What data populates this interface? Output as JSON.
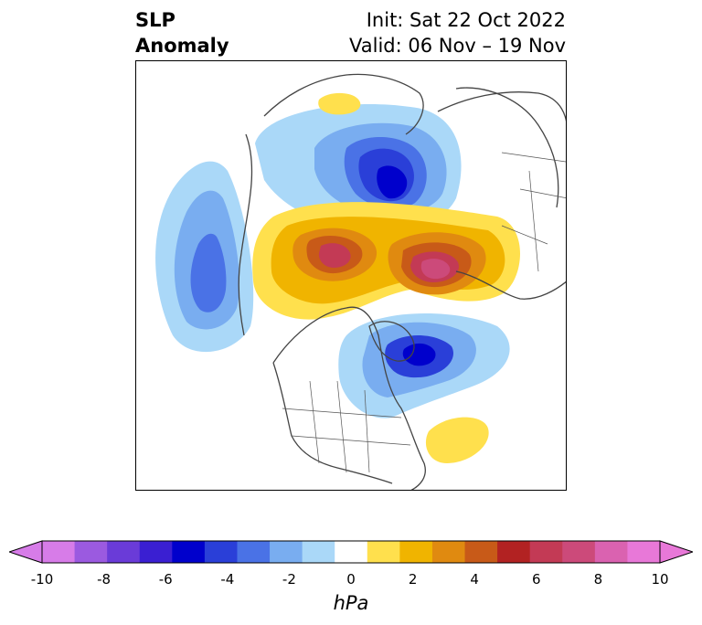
{
  "header": {
    "title_line1": "SLP",
    "title_line2": "Anomaly",
    "init_text": "Init: Sat 22 Oct 2022",
    "valid_text": "Valid: 06 Nov – 19 Nov"
  },
  "colorbar": {
    "unit": "hPa",
    "ticks": [
      "-10",
      "-8",
      "-6",
      "-4",
      "-2",
      "0",
      "2",
      "4",
      "6",
      "8",
      "10"
    ],
    "colors": [
      "#d77ce8",
      "#9b5ae0",
      "#6a3bd8",
      "#3a1fd2",
      "#0000cc",
      "#2a3fd8",
      "#4a72e6",
      "#79adf0",
      "#aad8f8",
      "#ffffff",
      "#ffe04d",
      "#f0b400",
      "#e08a10",
      "#c85a18",
      "#b22222",
      "#c33a55",
      "#cc4a7a",
      "#da62b0",
      "#e878d8"
    ],
    "extend_low_color": "#d77ce8",
    "extend_high_color": "#e878d8"
  },
  "map": {
    "anomalies": [
      {
        "name": "arctic-low",
        "value": -7
      },
      {
        "name": "hudson-bay-low",
        "value": -6
      },
      {
        "name": "north-pacific-low",
        "value": -4
      },
      {
        "name": "siberia-high",
        "value": 6
      },
      {
        "name": "europe-high",
        "value": 7
      },
      {
        "name": "subtropical-atlantic-high",
        "value": 1
      }
    ]
  }
}
